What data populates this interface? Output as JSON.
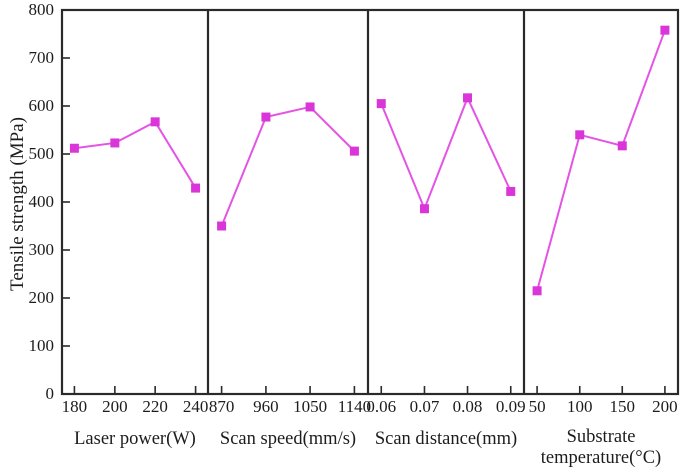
{
  "chart_data": {
    "type": "line",
    "title": "",
    "ylabel": "Tensile strength (MPa)",
    "ylim": [
      0,
      800
    ],
    "yticks": [
      0,
      100,
      200,
      300,
      400,
      500,
      600,
      700,
      800
    ],
    "grid": false,
    "legend": "none",
    "marker": "square",
    "line_color": "#e553e5",
    "marker_color": "#d935d9",
    "axis_color": "#2a2a2a",
    "panels": [
      {
        "xlabel": "Laser power(W)",
        "categories": [
          "180",
          "200",
          "220",
          "240"
        ],
        "values": [
          512,
          523,
          567,
          429
        ]
      },
      {
        "xlabel": "Scan speed(mm/s)",
        "categories": [
          "870",
          "960",
          "1050",
          "1140"
        ],
        "values": [
          350,
          577,
          598,
          506
        ]
      },
      {
        "xlabel": "Scan distance(mm)",
        "categories": [
          "0.06",
          "0.07",
          "0.08",
          "0.09"
        ],
        "values": [
          605,
          386,
          617,
          422
        ]
      },
      {
        "xlabel": "Substrate temperature(°C)",
        "categories": [
          "50",
          "100",
          "150",
          "200"
        ],
        "values": [
          215,
          540,
          517,
          758
        ]
      }
    ]
  }
}
